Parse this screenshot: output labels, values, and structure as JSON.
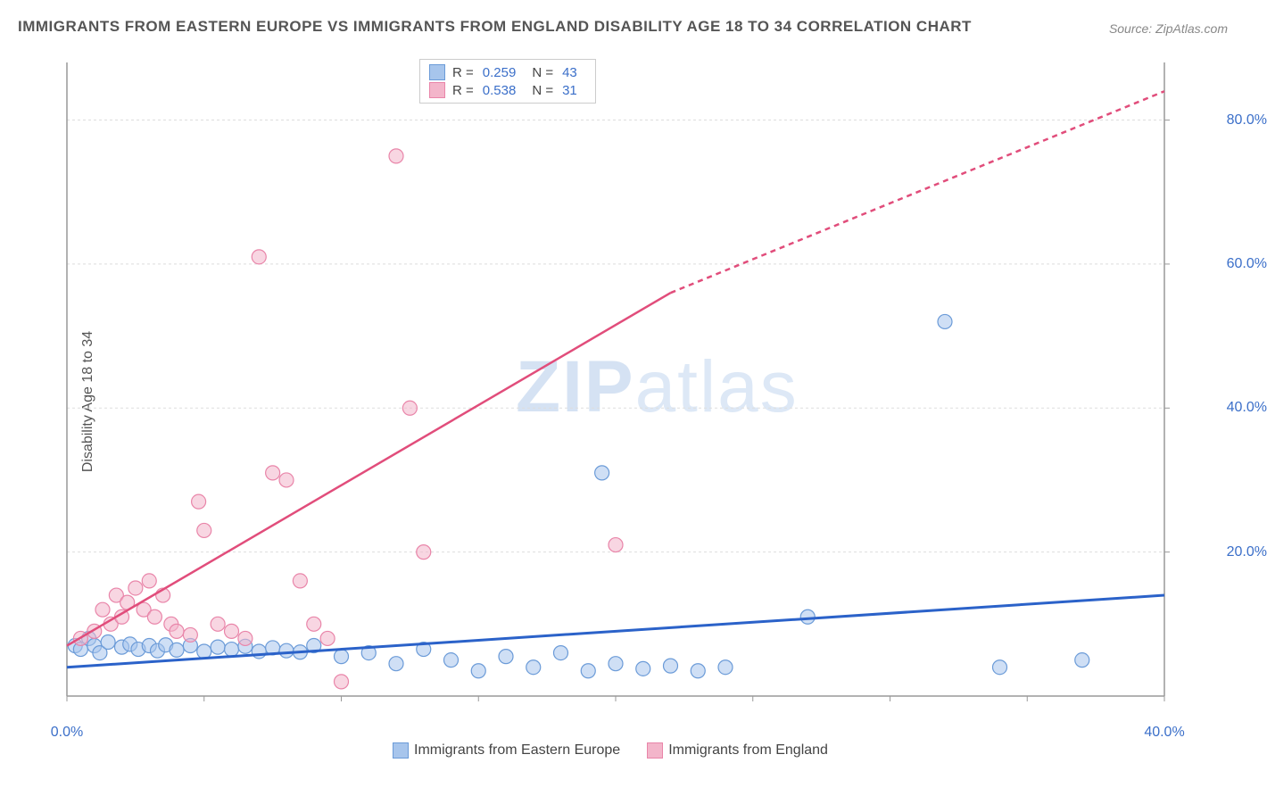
{
  "title": "IMMIGRANTS FROM EASTERN EUROPE VS IMMIGRANTS FROM ENGLAND DISABILITY AGE 18 TO 34 CORRELATION CHART",
  "source": "Source: ZipAtlas.com",
  "ylabel": "Disability Age 18 to 34",
  "watermark": {
    "bold": "ZIP",
    "thin": "atlas"
  },
  "chart": {
    "type": "scatter",
    "xlim": [
      0,
      40
    ],
    "ylim": [
      0,
      88
    ],
    "background_color": "#ffffff",
    "grid_color": "#dddddd",
    "axis_color": "#999999",
    "tick_color": "#999999",
    "label_color": "#3b6fc9",
    "yticks": [
      20,
      40,
      60,
      80
    ],
    "ytick_labels": [
      "20.0%",
      "40.0%",
      "60.0%",
      "80.0%"
    ],
    "xticks": [
      0,
      5,
      10,
      15,
      20,
      25,
      30,
      35,
      40
    ],
    "xtick_labels_shown": {
      "0": "0.0%",
      "40": "40.0%"
    },
    "marker_radius": 8,
    "marker_opacity": 0.55,
    "series": [
      {
        "name": "Immigrants from Eastern Europe",
        "color_fill": "#a7c5ec",
        "color_stroke": "#6b9bd8",
        "swatch_fill": "#a7c5ec",
        "swatch_border": "#6b9bd8",
        "R": "0.259",
        "N": "43",
        "trend": {
          "x1": 0,
          "y1": 4,
          "x2": 40,
          "y2": 14,
          "color": "#2b62c9",
          "width": 3,
          "dash": "none"
        },
        "points": [
          [
            0.3,
            7
          ],
          [
            0.5,
            6.5
          ],
          [
            0.8,
            8
          ],
          [
            1,
            7
          ],
          [
            1.2,
            6
          ],
          [
            1.5,
            7.5
          ],
          [
            2,
            6.8
          ],
          [
            2.3,
            7.2
          ],
          [
            2.6,
            6.5
          ],
          [
            3,
            7
          ],
          [
            3.3,
            6.3
          ],
          [
            3.6,
            7.1
          ],
          [
            4,
            6.4
          ],
          [
            4.5,
            7
          ],
          [
            5,
            6.2
          ],
          [
            5.5,
            6.8
          ],
          [
            6,
            6.5
          ],
          [
            6.5,
            6.9
          ],
          [
            7,
            6.2
          ],
          [
            7.5,
            6.7
          ],
          [
            8,
            6.3
          ],
          [
            8.5,
            6.1
          ],
          [
            9,
            7
          ],
          [
            10,
            5.5
          ],
          [
            11,
            6
          ],
          [
            12,
            4.5
          ],
          [
            13,
            6.5
          ],
          [
            14,
            5
          ],
          [
            15,
            3.5
          ],
          [
            16,
            5.5
          ],
          [
            17,
            4
          ],
          [
            18,
            6
          ],
          [
            19,
            3.5
          ],
          [
            19.5,
            31
          ],
          [
            20,
            4.5
          ],
          [
            21,
            3.8
          ],
          [
            22,
            4.2
          ],
          [
            23,
            3.5
          ],
          [
            24,
            4
          ],
          [
            27,
            11
          ],
          [
            32,
            52
          ],
          [
            34,
            4
          ],
          [
            37,
            5
          ]
        ]
      },
      {
        "name": "Immigrants from England",
        "color_fill": "#f3b5ca",
        "color_stroke": "#e985a9",
        "swatch_fill": "#f3b5ca",
        "swatch_border": "#e985a9",
        "R": "0.538",
        "N": "31",
        "trend": {
          "x1": 0,
          "y1": 7,
          "x2": 22,
          "y2": 56,
          "x3": 40,
          "y3": 84,
          "color": "#e14d7b",
          "width": 2.5,
          "dash_from_x": 22
        },
        "points": [
          [
            0.5,
            8
          ],
          [
            1,
            9
          ],
          [
            1.3,
            12
          ],
          [
            1.6,
            10
          ],
          [
            1.8,
            14
          ],
          [
            2,
            11
          ],
          [
            2.2,
            13
          ],
          [
            2.5,
            15
          ],
          [
            2.8,
            12
          ],
          [
            3,
            16
          ],
          [
            3.2,
            11
          ],
          [
            3.5,
            14
          ],
          [
            3.8,
            10
          ],
          [
            4,
            9
          ],
          [
            4.5,
            8.5
          ],
          [
            4.8,
            27
          ],
          [
            5,
            23
          ],
          [
            5.5,
            10
          ],
          [
            6,
            9
          ],
          [
            6.5,
            8
          ],
          [
            7,
            61
          ],
          [
            7.5,
            31
          ],
          [
            8,
            30
          ],
          [
            8.5,
            16
          ],
          [
            9,
            10
          ],
          [
            9.5,
            8
          ],
          [
            10,
            2
          ],
          [
            12,
            75
          ],
          [
            12.5,
            40
          ],
          [
            13,
            20
          ],
          [
            20,
            21
          ]
        ]
      }
    ]
  },
  "bottom_legend": [
    {
      "label": "Immigrants from Eastern Europe",
      "fill": "#a7c5ec",
      "border": "#6b9bd8"
    },
    {
      "label": "Immigrants from England",
      "fill": "#f3b5ca",
      "border": "#e985a9"
    }
  ]
}
